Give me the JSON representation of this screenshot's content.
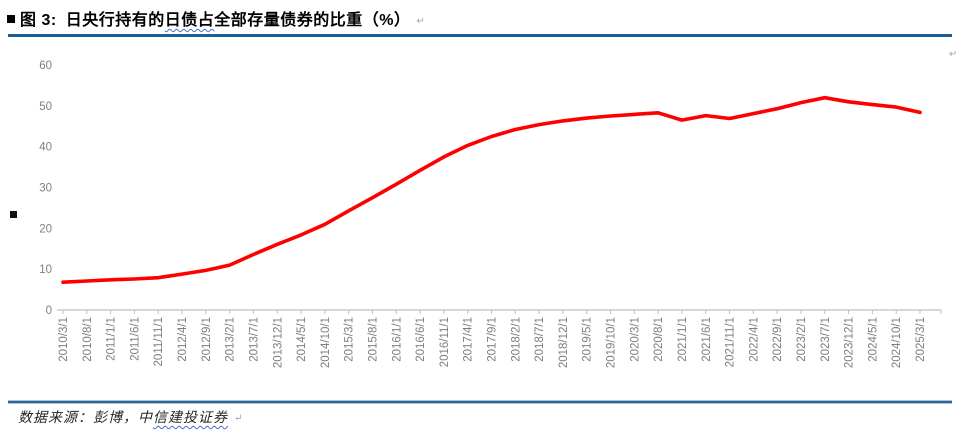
{
  "title": {
    "prefix": "图 3:",
    "text_before": "日央行持有的",
    "squiggle_text": "日债占",
    "text_after": "全部存量债券的比重（%）",
    "paragraph_mark": "↵"
  },
  "chart_area": {
    "corner_mark": "↵"
  },
  "footer": {
    "text_before": "数据来源：彭博，中",
    "squiggle_text": "信建投证券",
    "paragraph_mark": "↵"
  },
  "colors": {
    "line": "#FF0000",
    "divider": "#1F5C98",
    "tick_text": "#7F7F7F",
    "axis_line": "#BFBFBF",
    "squiggle": "#4472C4"
  },
  "chart_data": {
    "type": "line",
    "title": "图 3: 日央行持有的日债占全部存量债券的比重（%）",
    "xlabel": "",
    "ylabel": "",
    "ylim": [
      0,
      60
    ],
    "yticks": [
      0,
      10,
      20,
      30,
      40,
      50,
      60
    ],
    "grid": false,
    "legend": "none",
    "axis_color": "#BFBFBF",
    "x": [
      "2010/3/1",
      "2010/8/1",
      "2011/1/1",
      "2011/6/1",
      "2011/11/1",
      "2012/4/1",
      "2012/9/1",
      "2013/2/1",
      "2013/7/1",
      "2013/12/1",
      "2014/5/1",
      "2014/10/1",
      "2015/3/1",
      "2015/8/1",
      "2016/1/1",
      "2016/6/1",
      "2016/11/1",
      "2017/4/1",
      "2017/9/1",
      "2018/2/1",
      "2018/7/1",
      "2018/12/1",
      "2019/5/1",
      "2019/10/1",
      "2020/3/1",
      "2020/8/1",
      "2021/1/1",
      "2021/6/1",
      "2021/11/1",
      "2022/4/1",
      "2022/9/1",
      "2023/2/1",
      "2023/7/1",
      "2023/12/1",
      "2024/5/1",
      "2024/10/1",
      "2025/3/1"
    ],
    "series": [
      {
        "color": "#FF0000",
        "values": [
          6.8,
          7.1,
          7.4,
          7.6,
          7.9,
          8.8,
          9.7,
          11.0,
          13.6,
          16.1,
          18.4,
          21.0,
          24.3,
          27.5,
          30.8,
          34.2,
          37.5,
          40.3,
          42.5,
          44.2,
          45.4,
          46.3,
          47.0,
          47.5,
          47.9,
          48.3,
          46.5,
          47.6,
          46.9,
          48.1,
          49.3,
          50.8,
          52.0,
          51.0,
          50.3,
          49.7,
          48.4
        ]
      }
    ]
  }
}
